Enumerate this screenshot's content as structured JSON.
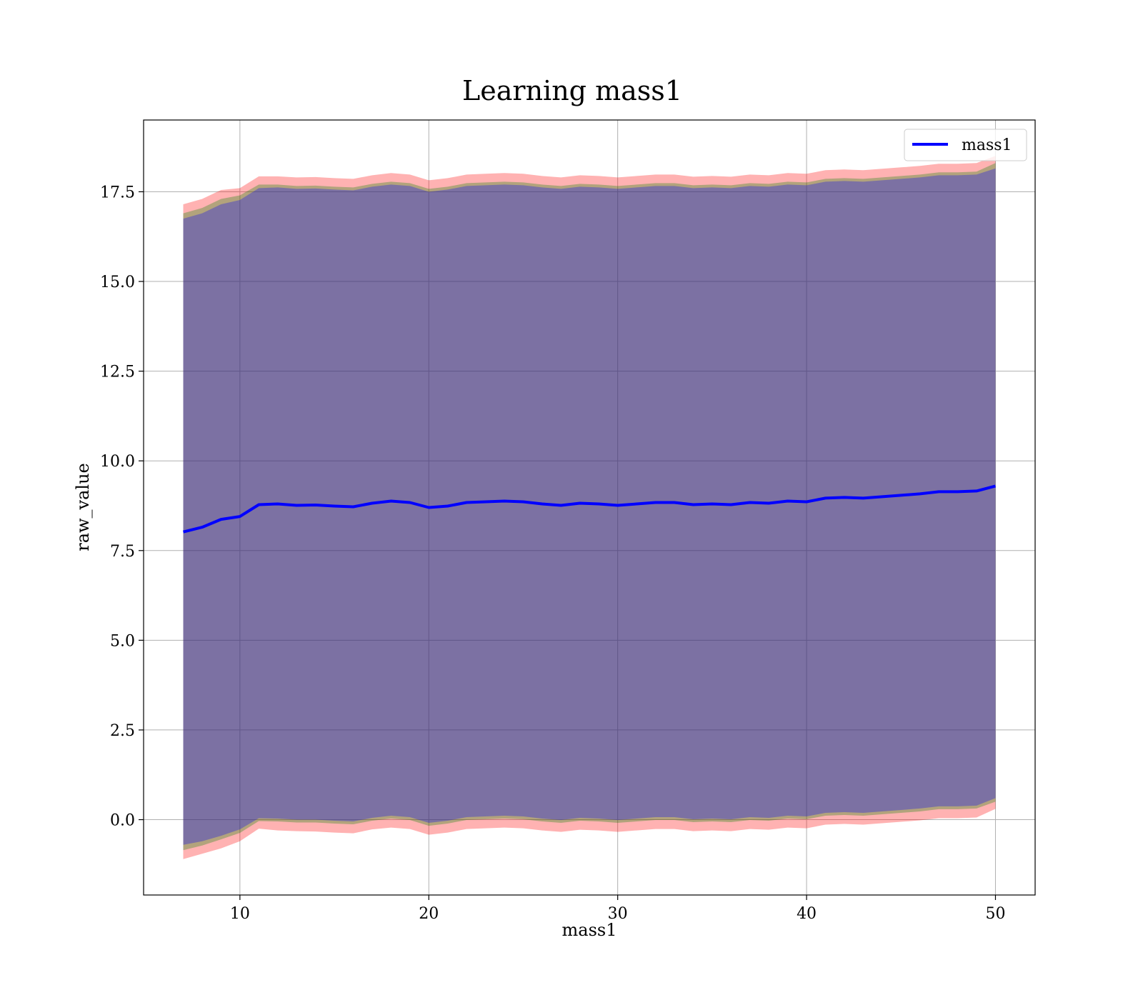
{
  "chart_data": {
    "type": "area",
    "title": "Learning mass1",
    "xlabel": "mass1",
    "ylabel": "raw_value",
    "xlim": [
      4.9,
      52.1
    ],
    "ylim": [
      -2.1,
      19.5
    ],
    "x_ticks": [
      10,
      20,
      30,
      40,
      50
    ],
    "x_tick_labels": [
      "10",
      "20",
      "30",
      "40",
      "50"
    ],
    "y_ticks": [
      0.0,
      2.5,
      5.0,
      7.5,
      10.0,
      12.5,
      15.0,
      17.5
    ],
    "y_tick_labels": [
      "0.0",
      "2.5",
      "5.0",
      "7.5",
      "10.0",
      "12.5",
      "15.0",
      "17.5"
    ],
    "grid": true,
    "legend_position": "upper right",
    "x": [
      7,
      8,
      9,
      10,
      11,
      12,
      13,
      14,
      15,
      16,
      17,
      18,
      19,
      20,
      21,
      22,
      23,
      24,
      25,
      26,
      27,
      28,
      29,
      30,
      31,
      32,
      33,
      34,
      35,
      36,
      37,
      38,
      39,
      40,
      41,
      42,
      43,
      44,
      45,
      46,
      47,
      48,
      49,
      50
    ],
    "series": [
      {
        "name": "mass1",
        "color": "#0000ff",
        "values": [
          8.02,
          8.15,
          8.37,
          8.45,
          8.78,
          8.8,
          8.76,
          8.77,
          8.74,
          8.72,
          8.82,
          8.88,
          8.84,
          8.7,
          8.74,
          8.84,
          8.86,
          8.88,
          8.86,
          8.8,
          8.76,
          8.82,
          8.8,
          8.76,
          8.8,
          8.84,
          8.84,
          8.78,
          8.8,
          8.78,
          8.84,
          8.82,
          8.88,
          8.86,
          8.96,
          8.98,
          8.96,
          9.0,
          9.04,
          9.08,
          9.14,
          9.14,
          9.16,
          9.3
        ]
      }
    ],
    "bands": [
      {
        "color": "#ff0000",
        "opacity": 0.3,
        "lower": [
          -1.1,
          -0.95,
          -0.8,
          -0.6,
          -0.25,
          -0.3,
          -0.32,
          -0.33,
          -0.36,
          -0.38,
          -0.27,
          -0.22,
          -0.26,
          -0.42,
          -0.36,
          -0.26,
          -0.24,
          -0.22,
          -0.24,
          -0.3,
          -0.34,
          -0.28,
          -0.3,
          -0.34,
          -0.3,
          -0.26,
          -0.26,
          -0.32,
          -0.3,
          -0.32,
          -0.26,
          -0.28,
          -0.22,
          -0.24,
          -0.14,
          -0.12,
          -0.14,
          -0.1,
          -0.06,
          -0.02,
          0.04,
          0.04,
          0.06,
          0.3
        ],
        "upper": [
          17.15,
          17.3,
          17.55,
          17.6,
          17.93,
          17.93,
          17.9,
          17.91,
          17.88,
          17.86,
          17.96,
          18.02,
          17.98,
          17.82,
          17.88,
          17.98,
          18.0,
          18.02,
          18.0,
          17.94,
          17.9,
          17.96,
          17.94,
          17.9,
          17.94,
          17.98,
          17.98,
          17.92,
          17.94,
          17.92,
          17.98,
          17.96,
          18.02,
          18.0,
          18.1,
          18.12,
          18.1,
          18.14,
          18.18,
          18.22,
          18.28,
          18.28,
          18.3,
          18.5
        ]
      },
      {
        "color": "#008000",
        "opacity": 0.3,
        "lower": [
          -0.85,
          -0.72,
          -0.55,
          -0.37,
          -0.04,
          -0.05,
          -0.08,
          -0.08,
          -0.11,
          -0.13,
          -0.03,
          0.03,
          -0.01,
          -0.17,
          -0.11,
          -0.01,
          0.01,
          0.03,
          0.01,
          -0.05,
          -0.09,
          -0.03,
          -0.05,
          -0.09,
          -0.05,
          -0.01,
          -0.01,
          -0.07,
          -0.05,
          -0.07,
          -0.01,
          -0.03,
          0.03,
          0.01,
          0.11,
          0.13,
          0.11,
          0.15,
          0.19,
          0.23,
          0.29,
          0.29,
          0.31,
          0.5
        ],
        "upper": [
          16.9,
          17.05,
          17.3,
          17.4,
          17.7,
          17.7,
          17.66,
          17.67,
          17.64,
          17.62,
          17.72,
          17.78,
          17.74,
          17.58,
          17.64,
          17.74,
          17.76,
          17.78,
          17.76,
          17.7,
          17.66,
          17.72,
          17.7,
          17.66,
          17.7,
          17.74,
          17.74,
          17.68,
          17.7,
          17.68,
          17.74,
          17.72,
          17.78,
          17.76,
          17.86,
          17.88,
          17.86,
          17.9,
          17.94,
          17.98,
          18.04,
          18.04,
          18.06,
          18.3
        ]
      },
      {
        "color": "#0000ff",
        "opacity": 0.3,
        "lower": [
          -0.7,
          -0.6,
          -0.45,
          -0.27,
          0.04,
          0.03,
          0.0,
          0.0,
          -0.03,
          -0.05,
          0.05,
          0.11,
          0.07,
          -0.09,
          -0.03,
          0.07,
          0.09,
          0.11,
          0.09,
          0.03,
          -0.01,
          0.05,
          0.03,
          -0.01,
          0.03,
          0.07,
          0.07,
          0.01,
          0.03,
          0.01,
          0.07,
          0.05,
          0.11,
          0.09,
          0.19,
          0.21,
          0.19,
          0.23,
          0.27,
          0.31,
          0.37,
          0.37,
          0.39,
          0.6
        ],
        "upper": [
          16.75,
          16.9,
          17.15,
          17.27,
          17.6,
          17.62,
          17.58,
          17.59,
          17.56,
          17.54,
          17.64,
          17.7,
          17.66,
          17.5,
          17.56,
          17.66,
          17.68,
          17.7,
          17.68,
          17.62,
          17.58,
          17.64,
          17.62,
          17.58,
          17.62,
          17.66,
          17.66,
          17.6,
          17.62,
          17.6,
          17.66,
          17.64,
          17.7,
          17.68,
          17.78,
          17.8,
          17.78,
          17.82,
          17.86,
          17.9,
          17.96,
          17.96,
          17.98,
          18.15
        ]
      }
    ]
  }
}
